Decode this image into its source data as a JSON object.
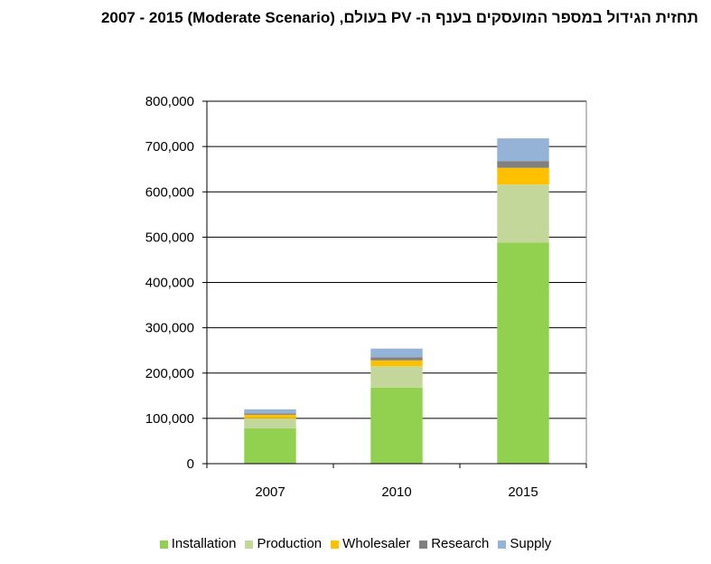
{
  "chart_data": {
    "type": "bar",
    "stacked": true,
    "title": "תחזית הגידול במספר המועסקים בענף ה- PV בעולם, (Moderate Scenario) 2007 - 2015",
    "categories": [
      "2007",
      "2010",
      "2015"
    ],
    "series": [
      {
        "name": "Installation",
        "color": "#92d050",
        "values": [
          78000,
          168000,
          488000
        ]
      },
      {
        "name": "Production",
        "color": "#c4d79b",
        "values": [
          22000,
          47000,
          128000
        ]
      },
      {
        "name": "Wholesaler",
        "color": "#ffc000",
        "values": [
          8000,
          13000,
          37000
        ]
      },
      {
        "name": "Research",
        "color": "#808080",
        "values": [
          3000,
          7000,
          15000
        ]
      },
      {
        "name": "Supply",
        "color": "#95b3d7",
        "values": [
          9000,
          19000,
          50000
        ]
      }
    ],
    "ylim": [
      0,
      800000
    ],
    "yticks": [
      "0",
      "100,000",
      "200,000",
      "300,000",
      "400,000",
      "500,000",
      "600,000",
      "700,000",
      "800,000"
    ],
    "ytick_values": [
      0,
      100000,
      200000,
      300000,
      400000,
      500000,
      600000,
      700000,
      800000
    ],
    "xlabel": "",
    "ylabel": "",
    "grid": true,
    "legend_position": "bottom"
  }
}
